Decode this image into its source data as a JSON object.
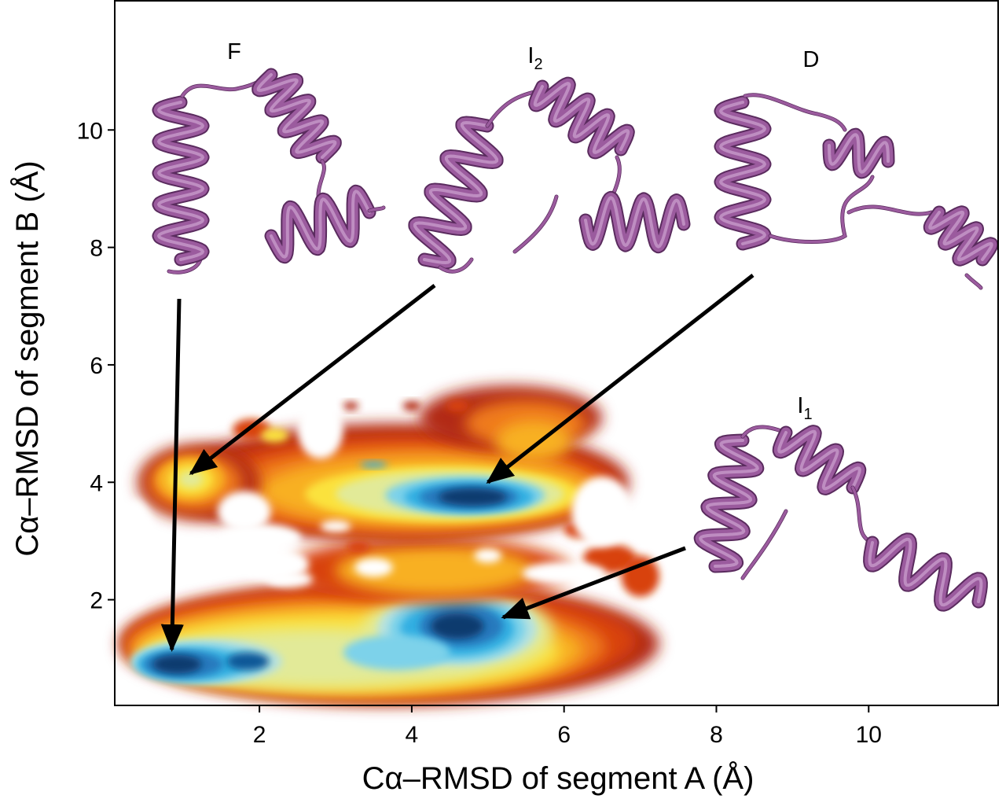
{
  "chart_data": {
    "type": "heatmap",
    "title": "",
    "xlabel": "Cα–RMSD of segment A (Å)",
    "ylabel": "Cα–RMSD of segment B (Å)",
    "xlabel_parts": {
      "prefix": "C",
      "greek": "α",
      "suffix": "–RMSD of segment A (Å)"
    },
    "ylabel_parts": {
      "prefix": "C",
      "greek": "α",
      "suffix": "–RMSD of segment B (Å)"
    },
    "xlim": [
      0.1,
      11.7
    ],
    "ylim": [
      0.2,
      12.2
    ],
    "x_ticks": [
      2,
      4,
      6,
      8,
      10
    ],
    "y_ticks": [
      2,
      4,
      6,
      8,
      10
    ],
    "x_tick_labels": [
      "2",
      "4",
      "6",
      "8",
      "10"
    ],
    "y_tick_labels": [
      "2",
      "4",
      "6",
      "8",
      "10"
    ],
    "grid": false,
    "colormap": [
      "#b22a12",
      "#d8430f",
      "#ef7a1a",
      "#f8b020",
      "#fbe23c",
      "#e2ea98",
      "#b7e2de",
      "#7dd2ea",
      "#32afe2",
      "#2679bd",
      "#0a5796",
      "#083b6e"
    ],
    "density_regions": [
      {
        "shape": "band",
        "x_range": [
          0.3,
          7.2
        ],
        "y_range": [
          0.25,
          2.3
        ],
        "note": "lower high-density band"
      },
      {
        "shape": "band",
        "x_range": [
          0.3,
          6.9
        ],
        "y_range": [
          2.7,
          5.7
        ],
        "note": "upper density band"
      }
    ],
    "density_peaks": [
      {
        "x": 0.9,
        "y": 0.9,
        "level": 11
      },
      {
        "x": 1.8,
        "y": 0.95,
        "level": 9
      },
      {
        "x": 4.6,
        "y": 1.5,
        "level": 11
      },
      {
        "x": 4.7,
        "y": 3.8,
        "level": 11
      },
      {
        "x": 3.5,
        "y": 4.3,
        "level": 8
      },
      {
        "x": 1.1,
        "y": 4.1,
        "level": 5
      }
    ],
    "annotations": [
      {
        "label": "F",
        "sub": "",
        "arrow_to": {
          "x": 0.85,
          "y": 1.15
        }
      },
      {
        "label": "I",
        "sub": "2",
        "arrow_to": {
          "x": 1.1,
          "y": 4.15
        }
      },
      {
        "label": "D",
        "sub": "",
        "arrow_to": {
          "x": 5.0,
          "y": 4.0
        }
      },
      {
        "label": "I",
        "sub": "1",
        "arrow_to": {
          "x": 5.2,
          "y": 1.7
        }
      }
    ],
    "structure_color": "#9b5b9e"
  }
}
